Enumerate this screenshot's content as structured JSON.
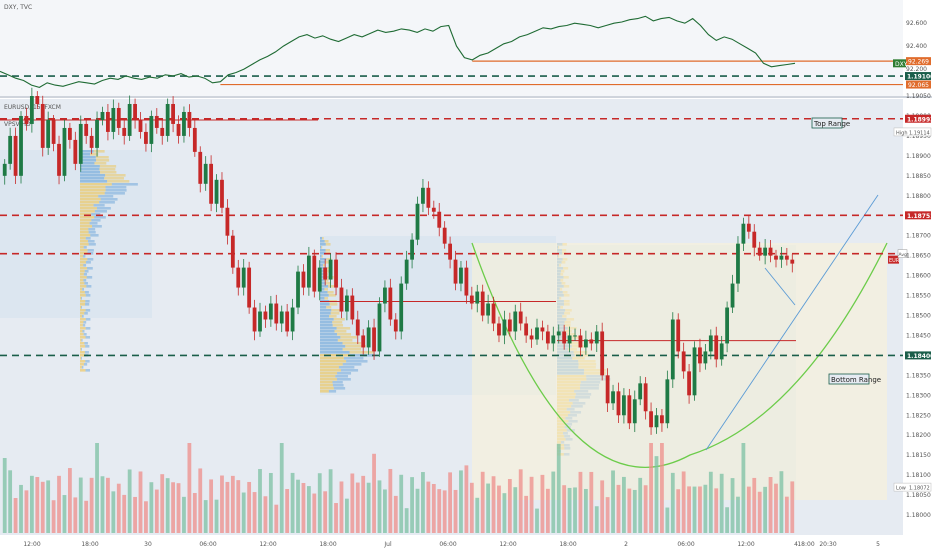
{
  "chart_data": [
    {
      "type": "line",
      "title": "DXY, TVC",
      "ylim": [
        92.0,
        92.68
      ],
      "y_ticks": [
        "92.600",
        "92.400",
        "92.200"
      ],
      "tags": [
        {
          "value": "92.269",
          "color": "#e06c2c"
        },
        {
          "value": "DXY",
          "color": "#2e7d32"
        },
        {
          "value": "92.065",
          "color": "#e06c2c"
        }
      ],
      "horizontal_lines": [
        {
          "value": 92.269,
          "color": "#e06c2c",
          "x_start_index": 60
        },
        {
          "value": 92.065,
          "color": "#e06c2c",
          "x_start_index": 28
        }
      ],
      "values": [
        92.18,
        92.15,
        92.12,
        92.1,
        92.06,
        92.04,
        92.08,
        92.06,
        92.05,
        92.07,
        92.09,
        92.08,
        92.07,
        92.1,
        92.12,
        92.11,
        92.14,
        92.12,
        92.11,
        92.13,
        92.12,
        92.15,
        92.14,
        92.16,
        92.13,
        92.14,
        92.12,
        92.08,
        92.09,
        92.15,
        92.17,
        92.2,
        92.24,
        92.28,
        92.31,
        92.35,
        92.4,
        92.44,
        92.48,
        92.5,
        92.47,
        92.49,
        92.46,
        92.44,
        92.47,
        92.5,
        92.48,
        92.51,
        92.54,
        92.52,
        92.53,
        92.55,
        92.54,
        92.52,
        92.55,
        92.53,
        92.57,
        92.58,
        92.4,
        92.3,
        92.28,
        92.32,
        92.34,
        92.38,
        92.42,
        92.44,
        92.48,
        92.5,
        92.53,
        92.56,
        92.55,
        92.57,
        92.58,
        92.6,
        92.59,
        92.58,
        92.56,
        92.58,
        92.6,
        92.61,
        92.63,
        92.64,
        92.66,
        92.62,
        92.64,
        92.65,
        92.62,
        92.6,
        92.64,
        92.58,
        92.5,
        92.45,
        92.48,
        92.46,
        92.42,
        92.38,
        92.34,
        92.25,
        92.22,
        92.23,
        92.24,
        92.25
      ]
    },
    {
      "type": "candlestick",
      "title": "EURUSD, 15, FXCM",
      "indicator_label": "VPSV HD",
      "ylim": [
        1.17955,
        1.1904
      ],
      "y_ticks": [
        "1.19050",
        "1.19000",
        "1.18950",
        "1.18900",
        "1.18850",
        "1.18800",
        "1.18750",
        "1.18700",
        "1.18650",
        "1.18600",
        "1.18550",
        "1.18500",
        "1.18450",
        "1.18400",
        "1.18350",
        "1.18300",
        "1.18250",
        "1.18200",
        "1.18150",
        "1.18100",
        "1.18050",
        "1.18000"
      ],
      "x_labels": [
        "12:00",
        "18:00",
        "30",
        "06:00",
        "12:00",
        "18:00",
        "Jul",
        "06:00",
        "12:00",
        "18:00",
        "2",
        "06:00",
        "12:00",
        "18:00",
        "4",
        "20:30",
        "5"
      ],
      "price_tags": [
        {
          "value": "1.19100",
          "color": "#1a5e4a"
        },
        {
          "value": "1.18993",
          "color": "#c62828"
        },
        {
          "value": "1.18751",
          "color": "#c62828"
        },
        {
          "value": "1.18400",
          "color": "#1a5e4a"
        },
        {
          "value": "1.19114",
          "prefix": "High",
          "color": "#ffffff"
        },
        {
          "value": "1.18072",
          "prefix": "Low",
          "color": "#ffffff"
        },
        {
          "value": "EUR",
          "color": "#c62828"
        },
        {
          "value": "Avg",
          "color": "#ffffff"
        }
      ],
      "horizontal_lines": [
        {
          "value": 1.191,
          "style": "dashed",
          "color": "#1a5e4a"
        },
        {
          "value": 1.18993,
          "style": "dashed",
          "color": "#c62828"
        },
        {
          "value": 1.18751,
          "style": "dashed",
          "color": "#c62828"
        },
        {
          "value": 1.18655,
          "style": "dashed",
          "color": "#c62828"
        },
        {
          "value": 1.184,
          "style": "dashed",
          "color": "#1a5e4a"
        }
      ],
      "annotations": [
        "Top Range",
        "Bottom Range"
      ],
      "closes": [
        1.1888,
        1.1895,
        1.1885,
        1.19,
        1.1898,
        1.1905,
        1.1903,
        1.1892,
        1.1899,
        1.1893,
        1.1885,
        1.1897,
        1.1894,
        1.1888,
        1.1898,
        1.1895,
        1.1892,
        1.1899,
        1.1901,
        1.1896,
        1.1902,
        1.1897,
        1.1895,
        1.1903,
        1.1899,
        1.1896,
        1.1893,
        1.19,
        1.1897,
        1.1895,
        1.1903,
        1.1898,
        1.1895,
        1.1901,
        1.1897,
        1.1891,
        1.1883,
        1.1888,
        1.1878,
        1.1884,
        1.1877,
        1.187,
        1.1862,
        1.1857,
        1.1862,
        1.1852,
        1.1846,
        1.1851,
        1.1849,
        1.1853,
        1.1848,
        1.1851,
        1.1846,
        1.1852,
        1.1861,
        1.1857,
        1.1865,
        1.1856,
        1.1862,
        1.1859,
        1.1864,
        1.1857,
        1.1851,
        1.1855,
        1.1849,
        1.1845,
        1.1842,
        1.1847,
        1.1841,
        1.1853,
        1.1857,
        1.1849,
        1.1846,
        1.1858,
        1.1864,
        1.1869,
        1.1878,
        1.1882,
        1.1877,
        1.1876,
        1.1872,
        1.1868,
        1.1864,
        1.1858,
        1.1862,
        1.1855,
        1.1853,
        1.1856,
        1.185,
        1.1853,
        1.1848,
        1.1845,
        1.1849,
        1.1846,
        1.1851,
        1.1848,
        1.1845,
        1.1844,
        1.1847,
        1.1846,
        1.1843,
        1.1845,
        1.1846,
        1.1843,
        1.1845,
        1.1845,
        1.1842,
        1.1844,
        1.1843,
        1.1846,
        1.1835,
        1.1828,
        1.1831,
        1.1825,
        1.183,
        1.1823,
        1.1829,
        1.1833,
        1.1826,
        1.1822,
        1.1825,
        1.1823,
        1.1834,
        1.1849,
        1.1841,
        1.1836,
        1.183,
        1.1842,
        1.1838,
        1.1841,
        1.1845,
        1.1839,
        1.1843,
        1.1852,
        1.1858,
        1.1868,
        1.1873,
        1.1871,
        1.1867,
        1.1865,
        1.1867,
        1.1865,
        1.1864,
        1.1865,
        1.1864,
        1.1863
      ],
      "bowl_curve_color": "#6ccc4a",
      "trendline_color": "#5b9bd5"
    }
  ]
}
